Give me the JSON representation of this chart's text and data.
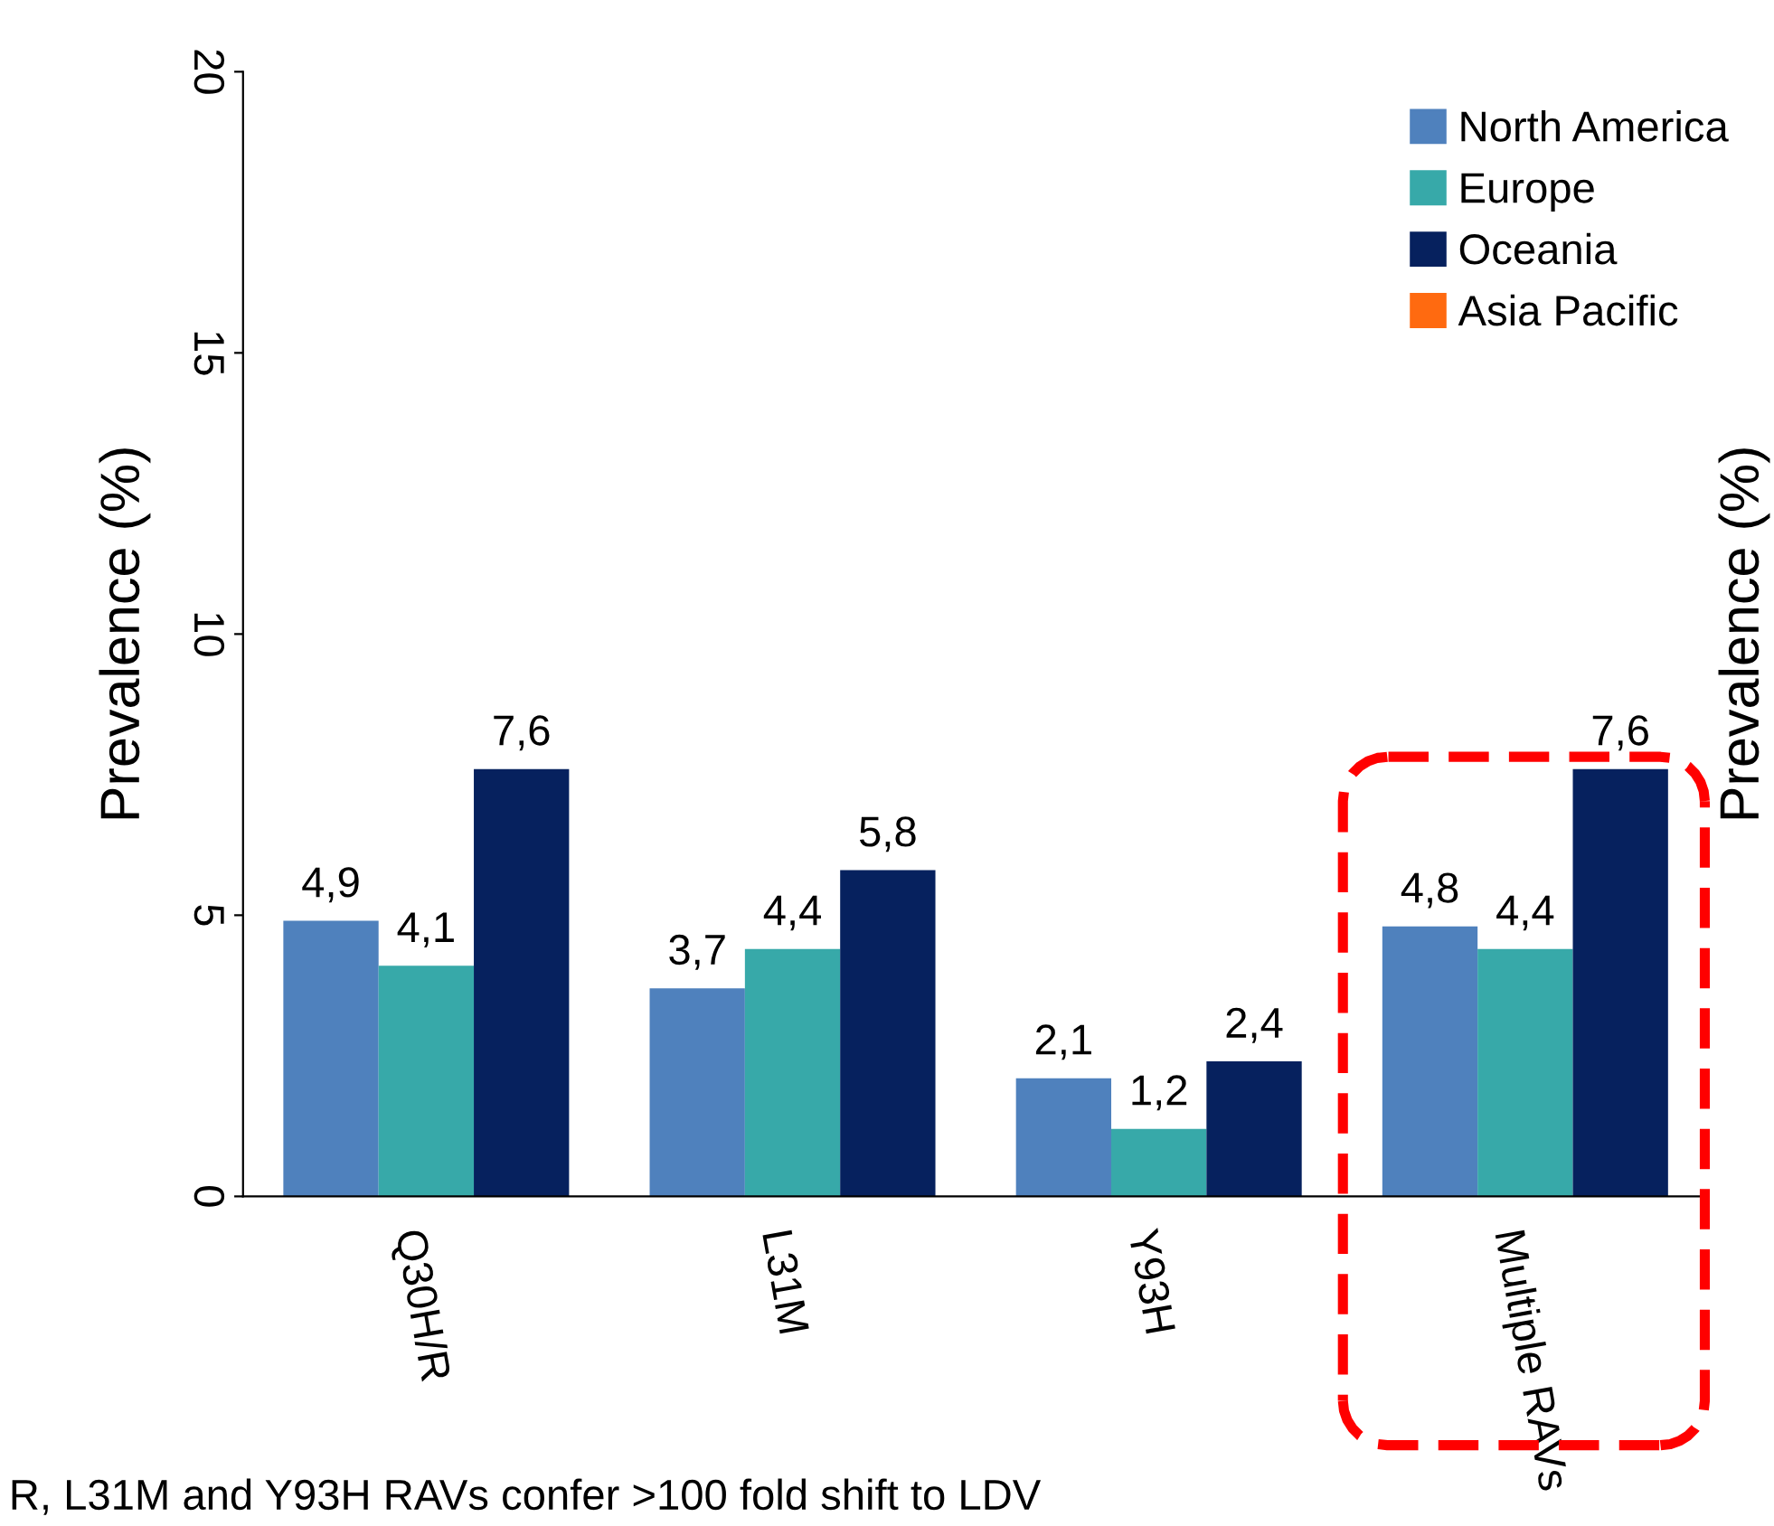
{
  "chart_data": {
    "type": "bar",
    "ylabel": "Prevalence (%)",
    "y2label": "Prevalence (%)",
    "categories": [
      "Q30H/R",
      "L31M",
      "Y93H",
      "Multiple RAVs"
    ],
    "series": [
      {
        "name": "North America",
        "color": "#4f81bd",
        "values": [
          4.9,
          3.7,
          2.1,
          4.8
        ],
        "value_labels": [
          "4,9",
          "3,7",
          "2,1",
          "4,8"
        ]
      },
      {
        "name": "Europe",
        "color": "#37a9a9",
        "values": [
          4.1,
          4.4,
          1.2,
          4.4
        ],
        "value_labels": [
          "4,1",
          "4,4",
          "1,2",
          "4,4"
        ]
      },
      {
        "name": "Oceania",
        "color": "#06215e",
        "values": [
          7.6,
          5.8,
          2.4,
          7.6
        ],
        "value_labels": [
          "7,6",
          "5,8",
          "2,4",
          "7,6"
        ]
      },
      {
        "name": "Asia Pacific",
        "color": "#ff6a10",
        "values": [
          null,
          null,
          null,
          null
        ]
      }
    ],
    "ylim": [
      0,
      20
    ],
    "yticks": [
      0,
      5,
      10,
      15,
      20
    ],
    "grid": false,
    "legend": "top right",
    "annotations": [
      "R, L31M and Y93H RAVs confer >100 fold shift to LDV"
    ]
  }
}
